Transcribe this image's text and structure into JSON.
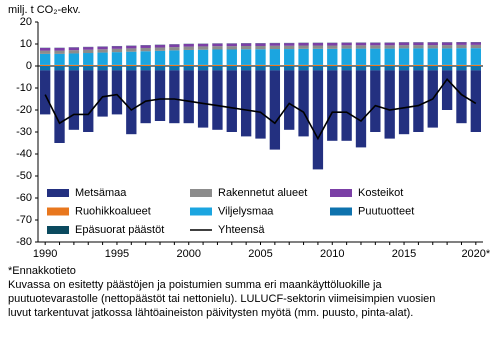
{
  "chart_data": {
    "type": "bar",
    "y_label": "milj. t CO₂-ekv.",
    "categories": [
      "1990",
      null,
      null,
      null,
      null,
      "1995",
      null,
      null,
      null,
      null,
      "2000",
      null,
      null,
      null,
      null,
      "2005",
      null,
      null,
      null,
      null,
      "2010",
      null,
      null,
      null,
      null,
      "2015",
      null,
      null,
      null,
      null,
      "2020*"
    ],
    "ylim": [
      -80,
      20
    ],
    "yticks": [
      -80,
      -70,
      -60,
      -50,
      -40,
      -30,
      -20,
      -10,
      0,
      10,
      20
    ],
    "legend": "bottom",
    "series": [
      {
        "name": "Metsämaa",
        "color": "#233080",
        "values": [
          -20,
          -33,
          -27,
          -28,
          -21,
          -20,
          -29,
          -24,
          -23,
          -24,
          -24,
          -26,
          -27,
          -28,
          -30,
          -31,
          -36,
          -27,
          -30,
          -45,
          -32,
          -32,
          -35,
          -28,
          -31,
          -29,
          -28,
          -26,
          -18,
          -24,
          -28
        ]
      },
      {
        "name": "Rakennetut alueet",
        "color": "#8c8c8c",
        "values": [
          1.5,
          1.5,
          1.5,
          1.5,
          1.5,
          1.5,
          1.5,
          1.5,
          1.5,
          1.5,
          1.5,
          1.5,
          1.5,
          1.5,
          1.5,
          1.5,
          1.5,
          1.5,
          1.5,
          1.5,
          1.5,
          1.5,
          1.5,
          1.5,
          1.5,
          1.5,
          1.5,
          1.5,
          1.5,
          1.5,
          1.5
        ]
      },
      {
        "name": "Kosteikot",
        "color": "#7b3fa6",
        "values": [
          1.2,
          1.2,
          1.2,
          1.2,
          1.2,
          1.2,
          1.2,
          1.2,
          1.2,
          1.2,
          1.2,
          1.2,
          1.2,
          1.2,
          1.2,
          1.2,
          1.2,
          1.2,
          1.2,
          1.2,
          1.2,
          1.2,
          1.2,
          1.2,
          1.2,
          1.2,
          1.2,
          1.2,
          1.2,
          1.2,
          1.2
        ]
      },
      {
        "name": "Ruohikkoalueet",
        "color": "#e8771e",
        "values": [
          0.5,
          0.5,
          0.5,
          0.5,
          0.5,
          0.5,
          0.5,
          0.5,
          0.5,
          0.5,
          0.5,
          0.5,
          0.5,
          0.5,
          0.5,
          0.5,
          0.5,
          0.5,
          0.5,
          0.5,
          0.5,
          0.5,
          0.5,
          0.5,
          0.5,
          0.5,
          0.5,
          0.5,
          0.5,
          0.5,
          0.5
        ]
      },
      {
        "name": "Viljelysmaa",
        "color": "#1ba5e0",
        "values": [
          5,
          5,
          5.2,
          5.4,
          5.6,
          5.8,
          6,
          6.2,
          6.4,
          6.6,
          6.8,
          6.9,
          7,
          7,
          7.1,
          7.1,
          7.2,
          7.2,
          7.3,
          7.3,
          7.3,
          7.4,
          7.4,
          7.4,
          7.4,
          7.5,
          7.5,
          7.5,
          7.5,
          7.6,
          7.6
        ]
      },
      {
        "name": "Puutuotteet",
        "color": "#0e72ad",
        "values": [
          -2,
          -2,
          -2,
          -2,
          -2,
          -2,
          -2,
          -2,
          -2,
          -2,
          -2,
          -2,
          -2,
          -2,
          -2,
          -2,
          -2,
          -2,
          -2,
          -2,
          -2,
          -2,
          -2,
          -2,
          -2,
          -2,
          -2,
          -2,
          -2,
          -2,
          -2
        ]
      },
      {
        "name": "Epäsuorat päästöt",
        "color": "#0b4a5f",
        "values": [
          0.1,
          0.1,
          0.1,
          0.1,
          0.1,
          0.1,
          0.1,
          0.1,
          0.1,
          0.1,
          0.1,
          0.1,
          0.1,
          0.1,
          0.1,
          0.1,
          0.1,
          0.1,
          0.1,
          0.1,
          0.1,
          0.1,
          0.1,
          0.1,
          0.1,
          0.1,
          0.1,
          0.1,
          0.1,
          0.1,
          0.1
        ]
      },
      {
        "name": "Yhteensä",
        "color": "#000000",
        "type": "line",
        "values": [
          -13,
          -26,
          -22,
          -22,
          -14,
          -13,
          -20,
          -16,
          -15,
          -15,
          -16,
          -17,
          -18,
          -19,
          -20,
          -21,
          -26,
          -17,
          -21,
          -33,
          -21,
          -21,
          -25,
          -18,
          -20,
          -19,
          -18,
          -15,
          -6,
          -13,
          -17
        ]
      }
    ]
  },
  "notes": [
    "*Ennakkotieto",
    "Kuvassa on esitetty päästöjen ja poistumien summa eri maankäyttöluokille ja",
    "puutuotevarastolle (nettopäästöt tai nettonielu). LULUCF-sektorin viimeisimpien vuosien",
    "luvut tarkentuvat jatkossa lähtöaineiston päivitysten myötä (mm. puusto, pinta-alat)."
  ]
}
